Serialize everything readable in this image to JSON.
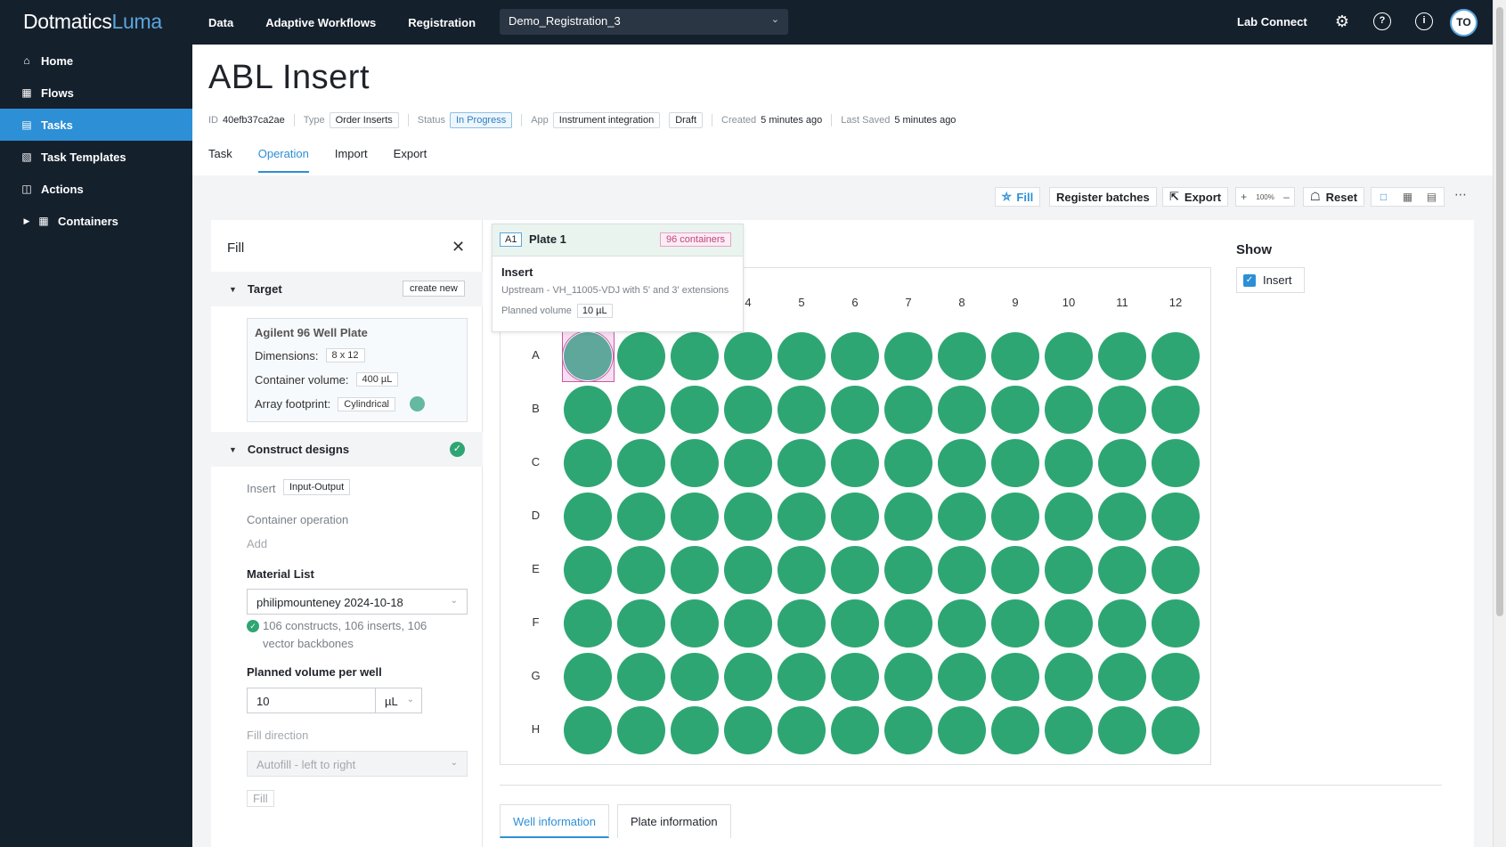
{
  "app": {
    "brand": "Dotmatics",
    "product": "Luma"
  },
  "topnav": [
    "Data",
    "Adaptive Workflows",
    "Registration"
  ],
  "project": "Demo_Registration_3",
  "lab_connect": "Lab Connect",
  "user_initials": "TO",
  "sidebar": {
    "items": [
      {
        "label": "Home",
        "icon": "home-icon"
      },
      {
        "label": "Flows",
        "icon": "flows-icon"
      },
      {
        "label": "Tasks",
        "icon": "tasks-icon",
        "active": true
      },
      {
        "label": "Task Templates",
        "icon": "templates-icon"
      },
      {
        "label": "Actions",
        "icon": "actions-icon"
      },
      {
        "label": "Containers",
        "icon": "grid-icon"
      }
    ]
  },
  "header": {
    "title": "ABL Insert",
    "id_label": "ID",
    "id_value": "40efb37ca2ae",
    "type_label": "Type",
    "type_value": "Order Inserts",
    "status_label": "Status",
    "status_value": "In Progress",
    "app_label": "App",
    "app_value": "Instrument integration",
    "app_state": "Draft",
    "created_label": "Created",
    "created_value": "5 minutes ago",
    "saved_label": "Last Saved",
    "saved_value": "5 minutes ago",
    "tabs": [
      "Task",
      "Operation",
      "Import",
      "Export"
    ],
    "active_tab": "Operation"
  },
  "toolbar": {
    "fill": "Fill",
    "register": "Register batches",
    "export": "Export",
    "zoom": "100%",
    "reset": "Reset"
  },
  "fill_panel": {
    "title": "Fill",
    "target_section": "Target",
    "create_new": "create new",
    "plate_name": "Agilent 96 Well Plate",
    "dimensions_label": "Dimensions:",
    "dimensions_value": "8 x 12",
    "volume_label": "Container volume:",
    "volume_value": "400 µL",
    "footprint_label": "Array footprint:",
    "footprint_value": "Cylindrical",
    "construct_section": "Construct designs",
    "insert_label": "Insert",
    "insert_tag": "Input-Output",
    "container_op_label": "Container operation",
    "add_label": "Add",
    "material_list_label": "Material List",
    "material_list_value": "philipmounteney 2024-10-18",
    "material_info": "106 constructs, 106 inserts, 106 vector backbones",
    "planned_volume_label": "Planned volume per well",
    "planned_volume_value": "10",
    "planned_volume_unit": "µL",
    "fill_direction_label": "Fill direction",
    "fill_direction_value": "Autofill - left to right",
    "fill_button": "Fill"
  },
  "tooltip": {
    "well": "A1",
    "plate": "Plate 1",
    "count": "96 containers",
    "title": "Insert",
    "description": "Upstream - VH_11005-VDJ with 5' and 3' extensions",
    "volume_label": "Planned volume",
    "volume_value": "10 µL"
  },
  "plate": {
    "columns": [
      "4",
      "5",
      "6",
      "7",
      "8",
      "9",
      "10",
      "11",
      "12"
    ],
    "rows": [
      "A",
      "B",
      "C",
      "D",
      "E",
      "F",
      "G",
      "H"
    ],
    "well_count_cols": 12,
    "selected_well": "A1"
  },
  "show_panel": {
    "title": "Show",
    "option": "Insert",
    "checked": true
  },
  "bottom_tabs": [
    "Well information",
    "Plate information"
  ],
  "colors": {
    "accent": "#2d8fd5",
    "well_fill": "#2ea673",
    "selected_border": "#c45aa7",
    "nav_bg": "#15202d"
  }
}
